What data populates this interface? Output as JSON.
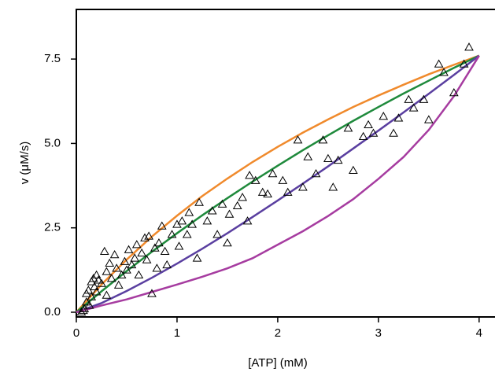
{
  "chart_data": {
    "type": "scatter",
    "x_label": "[ATP]   (mM)",
    "y_label": "v  (μM/s)",
    "xlim": [
      0,
      4.15
    ],
    "ylim": [
      -0.14,
      8.97
    ],
    "xticks": [
      0,
      1,
      2,
      3,
      4
    ],
    "yticks": [
      {
        "value": 0,
        "label": "0.0"
      },
      2.5,
      {
        "value": 5,
        "label": "5.0"
      },
      7.5
    ],
    "x": [
      0,
      0.25,
      0.5,
      0.75,
      1,
      1.25,
      1.5,
      1.75,
      2,
      2.25,
      2.5,
      2.75,
      3,
      3.25,
      3.5,
      3.75,
      4
    ],
    "series": [
      {
        "color": "#f08a2c",
        "values": [
          0,
          0.82,
          1.56,
          2.24,
          2.86,
          3.44,
          3.96,
          4.45,
          4.9,
          5.32,
          5.71,
          6.08,
          6.42,
          6.74,
          7.05,
          7.33,
          7.6
        ]
      },
      {
        "color": "#1f8a3c",
        "values": [
          0,
          0.62,
          1.22,
          1.79,
          2.34,
          2.87,
          3.38,
          3.87,
          4.34,
          4.8,
          5.24,
          5.67,
          6.08,
          6.48,
          6.86,
          7.24,
          7.6
        ]
      },
      {
        "color": "#5a3fa0",
        "values": [
          0,
          0.27,
          0.63,
          1.02,
          1.44,
          1.88,
          2.34,
          2.82,
          3.31,
          3.81,
          4.32,
          4.85,
          5.38,
          5.92,
          6.47,
          7.03,
          7.6
        ]
      },
      {
        "color": "#a63ca0",
        "values": [
          0,
          0.2,
          0.38,
          0.6,
          0.82,
          1.05,
          1.3,
          1.6,
          2.0,
          2.4,
          2.85,
          3.35,
          3.95,
          4.6,
          5.4,
          6.4,
          7.6
        ]
      }
    ],
    "points": {
      "color": "#000000",
      "x": [
        0.05,
        0.07,
        0.08,
        0.1,
        0.1,
        0.12,
        0.13,
        0.15,
        0.15,
        0.17,
        0.18,
        0.2,
        0.2,
        0.22,
        0.25,
        0.28,
        0.3,
        0.3,
        0.33,
        0.35,
        0.38,
        0.4,
        0.42,
        0.45,
        0.48,
        0.5,
        0.52,
        0.55,
        0.58,
        0.6,
        0.62,
        0.65,
        0.68,
        0.7,
        0.72,
        0.75,
        0.78,
        0.8,
        0.82,
        0.85,
        0.88,
        0.9,
        0.95,
        1.0,
        1.02,
        1.05,
        1.1,
        1.12,
        1.15,
        1.2,
        1.22,
        1.3,
        1.35,
        1.4,
        1.45,
        1.5,
        1.52,
        1.6,
        1.65,
        1.7,
        1.72,
        1.78,
        1.85,
        1.9,
        1.95,
        2.05,
        2.1,
        2.2,
        2.25,
        2.3,
        2.38,
        2.45,
        2.5,
        2.55,
        2.6,
        2.7,
        2.75,
        2.85,
        2.9,
        2.95,
        3.05,
        3.15,
        3.2,
        3.3,
        3.35,
        3.45,
        3.5,
        3.6,
        3.65,
        3.75,
        3.85,
        3.9
      ],
      "y": [
        0.0,
        0.05,
        0.1,
        0.3,
        0.55,
        0.65,
        0.2,
        0.9,
        0.45,
        1.0,
        0.75,
        1.1,
        0.6,
        0.95,
        0.85,
        1.8,
        1.2,
        0.5,
        1.45,
        1.0,
        1.7,
        1.3,
        0.8,
        1.1,
        1.5,
        1.25,
        1.85,
        1.4,
        1.6,
        2.0,
        1.1,
        1.75,
        2.2,
        1.55,
        2.25,
        0.55,
        1.9,
        1.3,
        2.05,
        2.55,
        1.8,
        1.4,
        2.3,
        2.6,
        1.95,
        2.7,
        2.3,
        2.95,
        2.6,
        1.6,
        3.25,
        2.7,
        3.0,
        2.3,
        3.2,
        2.05,
        2.9,
        3.15,
        3.4,
        2.7,
        4.05,
        3.9,
        3.55,
        3.5,
        4.1,
        3.9,
        3.55,
        5.1,
        3.7,
        4.6,
        4.1,
        5.1,
        4.55,
        3.7,
        4.5,
        5.45,
        4.2,
        5.2,
        5.55,
        5.3,
        5.8,
        5.3,
        5.75,
        6.3,
        6.05,
        6.3,
        5.7,
        7.35,
        7.1,
        6.5,
        7.35,
        7.85
      ]
    }
  }
}
